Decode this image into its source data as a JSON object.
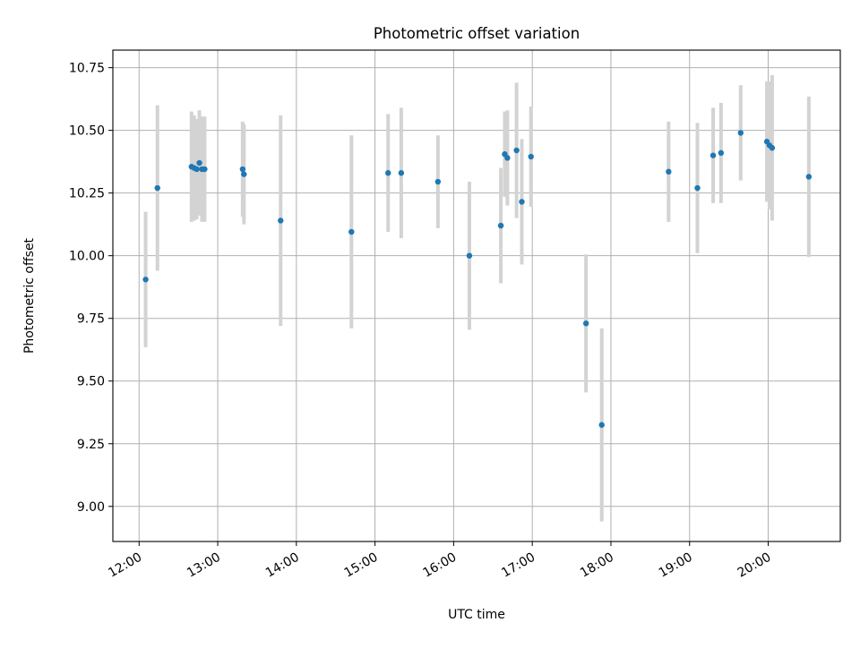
{
  "chart_data": {
    "type": "scatter",
    "title": "Photometric offset variation",
    "xlabel": "UTC time",
    "ylabel": "Photometric offset",
    "x_unit": "UTC time of day (hh:mm)",
    "xlim": [
      "11:40",
      "20:55"
    ],
    "ylim": [
      8.86,
      10.82
    ],
    "x_ticks": [
      "12:00",
      "13:00",
      "14:00",
      "15:00",
      "16:00",
      "17:00",
      "18:00",
      "19:00",
      "20:00"
    ],
    "y_ticks": [
      9.0,
      9.25,
      9.5,
      9.75,
      10.0,
      10.25,
      10.5,
      10.75
    ],
    "y_tick_labels": [
      "9.00",
      "9.25",
      "9.50",
      "9.75",
      "10.00",
      "10.25",
      "10.50",
      "10.75"
    ],
    "grid": true,
    "legend": "none",
    "colors": {
      "point": "#1f77b4",
      "error_bar": "#d3d3d3",
      "grid": "#b0b0b0",
      "axes": "#000000"
    },
    "points": [
      {
        "time": "12:05",
        "y": 9.905,
        "err": 0.27
      },
      {
        "time": "12:14",
        "y": 10.27,
        "err": 0.33
      },
      {
        "time": "12:40",
        "y": 10.355,
        "err": 0.22
      },
      {
        "time": "12:42",
        "y": 10.35,
        "err": 0.21
      },
      {
        "time": "12:44",
        "y": 10.345,
        "err": 0.2
      },
      {
        "time": "12:46",
        "y": 10.37,
        "err": 0.21
      },
      {
        "time": "12:48",
        "y": 10.345,
        "err": 0.21
      },
      {
        "time": "12:50",
        "y": 10.345,
        "err": 0.21
      },
      {
        "time": "13:19",
        "y": 10.345,
        "err": 0.19
      },
      {
        "time": "13:20",
        "y": 10.325,
        "err": 0.2
      },
      {
        "time": "13:48",
        "y": 10.14,
        "err": 0.42
      },
      {
        "time": "14:42",
        "y": 10.095,
        "err": 0.385
      },
      {
        "time": "15:10",
        "y": 10.33,
        "err": 0.235
      },
      {
        "time": "15:20",
        "y": 10.33,
        "err": 0.26
      },
      {
        "time": "15:48",
        "y": 10.295,
        "err": 0.185
      },
      {
        "time": "16:12",
        "y": 10.0,
        "err": 0.295
      },
      {
        "time": "16:36",
        "y": 10.12,
        "err": 0.23
      },
      {
        "time": "16:39",
        "y": 10.405,
        "err": 0.17
      },
      {
        "time": "16:41",
        "y": 10.39,
        "err": 0.19
      },
      {
        "time": "16:48",
        "y": 10.42,
        "err": 0.27
      },
      {
        "time": "16:52",
        "y": 10.215,
        "err": 0.25
      },
      {
        "time": "16:59",
        "y": 10.395,
        "err": 0.2
      },
      {
        "time": "17:41",
        "y": 9.73,
        "err": 0.275
      },
      {
        "time": "17:53",
        "y": 9.325,
        "err": 0.385
      },
      {
        "time": "18:44",
        "y": 10.335,
        "err": 0.2
      },
      {
        "time": "19:06",
        "y": 10.27,
        "err": 0.26
      },
      {
        "time": "19:18",
        "y": 10.4,
        "err": 0.19
      },
      {
        "time": "19:24",
        "y": 10.41,
        "err": 0.2
      },
      {
        "time": "19:39",
        "y": 10.49,
        "err": 0.19
      },
      {
        "time": "19:59",
        "y": 10.455,
        "err": 0.24
      },
      {
        "time": "20:01",
        "y": 10.44,
        "err": 0.255
      },
      {
        "time": "20:03",
        "y": 10.43,
        "err": 0.29
      },
      {
        "time": "20:31",
        "y": 10.315,
        "err": 0.32
      }
    ]
  }
}
